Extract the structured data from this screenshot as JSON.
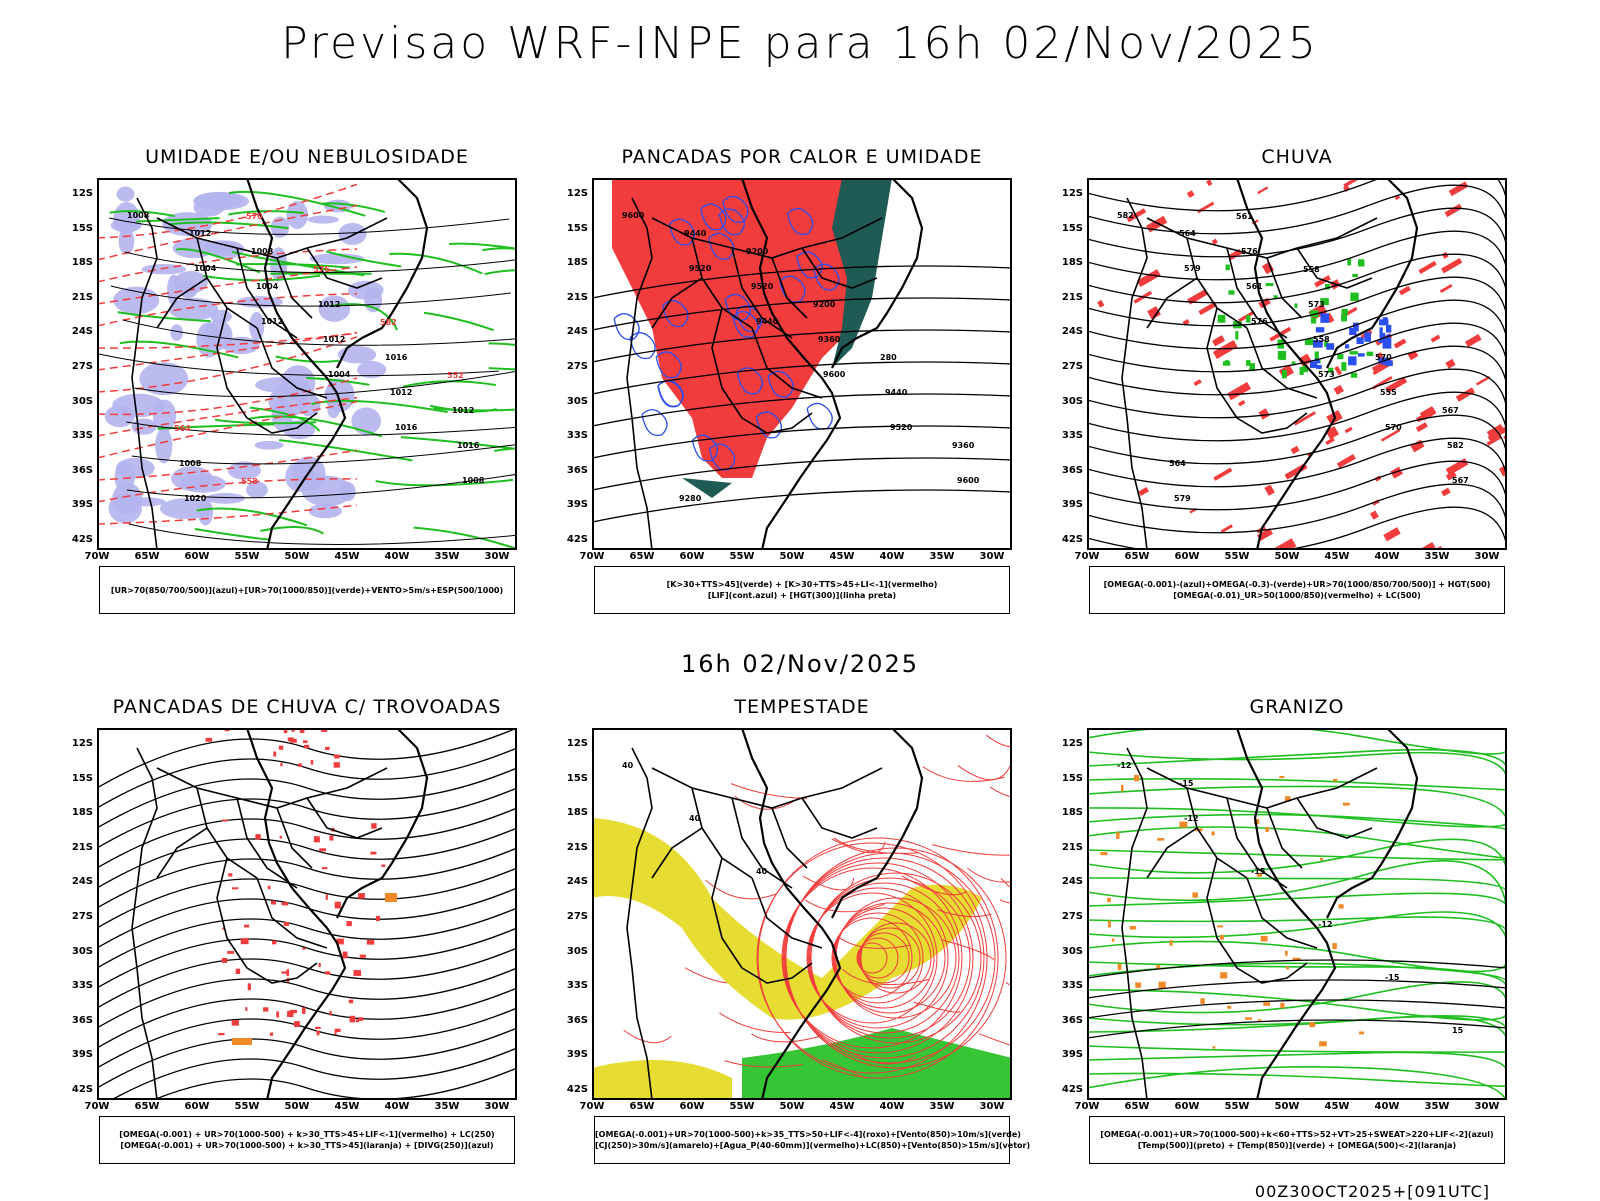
{
  "title": "Previsao WRF-INPE  para 16h 02/Nov/2025",
  "mid_time": "16h 02/Nov/2025",
  "footer": "00Z30OCT2025+[091UTC]",
  "lat_labels": [
    "12S",
    "15S",
    "18S",
    "21S",
    "24S",
    "27S",
    "30S",
    "33S",
    "36S",
    "39S",
    "42S"
  ],
  "lon_labels": [
    "70W",
    "65W",
    "60W",
    "55W",
    "50W",
    "45W",
    "40W",
    "35W",
    "30W"
  ],
  "colors": {
    "red": "#f03c3c",
    "green": "#1fbf1f",
    "blue": "#2b4ef0",
    "lavender": "#b4b4ee",
    "darkgreen": "#1f5a55",
    "yellow": "#e6dc32",
    "orange": "#f08a28",
    "black": "#000000"
  },
  "panels": [
    {
      "title": "UMIDADE E/OU NEBULOSIDADE",
      "legend": [
        "[UR>70(850/700/500)](azul)+[UR>70(1000/850)](verde)+VENTO>5m/s+ESP(500/1000)"
      ],
      "labels": [
        "1008",
        "1004",
        "1012",
        "1004",
        "1016",
        "1008",
        "1012",
        "1004",
        "1012",
        "1012",
        "1016",
        "1020",
        "1008",
        "1012",
        "1016",
        "1012",
        "1008",
        "570",
        "576",
        "582",
        "552",
        "564",
        "558"
      ]
    },
    {
      "title": "PANCADAS POR CALOR E UMIDADE",
      "legend": [
        "[K>30+TTS>45](verde) + [K>30+TTS>45+LI<-1](vermelho)",
        "[LIF](cont.azul) + [HGT(300)](linha preta)"
      ],
      "labels": [
        "9600",
        "9520",
        "9440",
        "9600",
        "9520",
        "9600",
        "9440",
        "9520",
        "9360",
        "9440",
        "9360",
        "9280",
        "9200",
        "9200",
        "280"
      ]
    },
    {
      "title": "CHUVA",
      "legend": [
        "[OMEGA(-0.001)-(azul)+OMEGA(-0.3)-(verde)+UR>70(1000/850/700/500)] + HGT(500)",
        "[OMEGA(-0.01)_UR>50(1000/850)(vermelho) + LC(500)"
      ],
      "labels": [
        "582",
        "579",
        "576",
        "573",
        "570",
        "567",
        "564",
        "561",
        "558",
        "555",
        "582",
        "579",
        "576",
        "573",
        "570",
        "567",
        "564",
        "561",
        "558"
      ]
    },
    {
      "title": "PANCADAS DE CHUVA C/ TROVOADAS",
      "legend": [
        "[OMEGA(-0.001) + UR>70(1000-500) + k>30_TTS>45+LIF<-1](vermelho) + LC(250)",
        "[OMEGA(-0.001) + UR>70(1000-500) + k>30_TTS>45](laranja) + [DIVG(250)](azul)"
      ],
      "labels": []
    },
    {
      "title": "TEMPESTADE",
      "legend": [
        "[OMEGA(-0.001)+UR>70(1000-500)+k>35_TTS>50+LIF<-4](roxo)+[Vento(850)>10m/s](verde)",
        "[CJ(250)>30m/s](amarelo)+[Agua_P(40-60mm)](vermelho)+LC(850)+[Vento(850)>15m/s](vetor)"
      ],
      "labels": [
        "40",
        "40",
        "40"
      ]
    },
    {
      "title": "GRANIZO",
      "legend": [
        "[OMEGA(-0.001)+UR>70(1000-500)+k<60+TTS>52+VT>25+SWEAT>220+LIF<-2](azul)",
        "[Temp(500)](preto) + [Temp(850)](verde) + [OMEGA(500)<-2](laranja)"
      ],
      "labels": [
        "-12",
        "-12",
        "-15",
        "-12",
        "-15",
        "15",
        "-15"
      ]
    }
  ]
}
